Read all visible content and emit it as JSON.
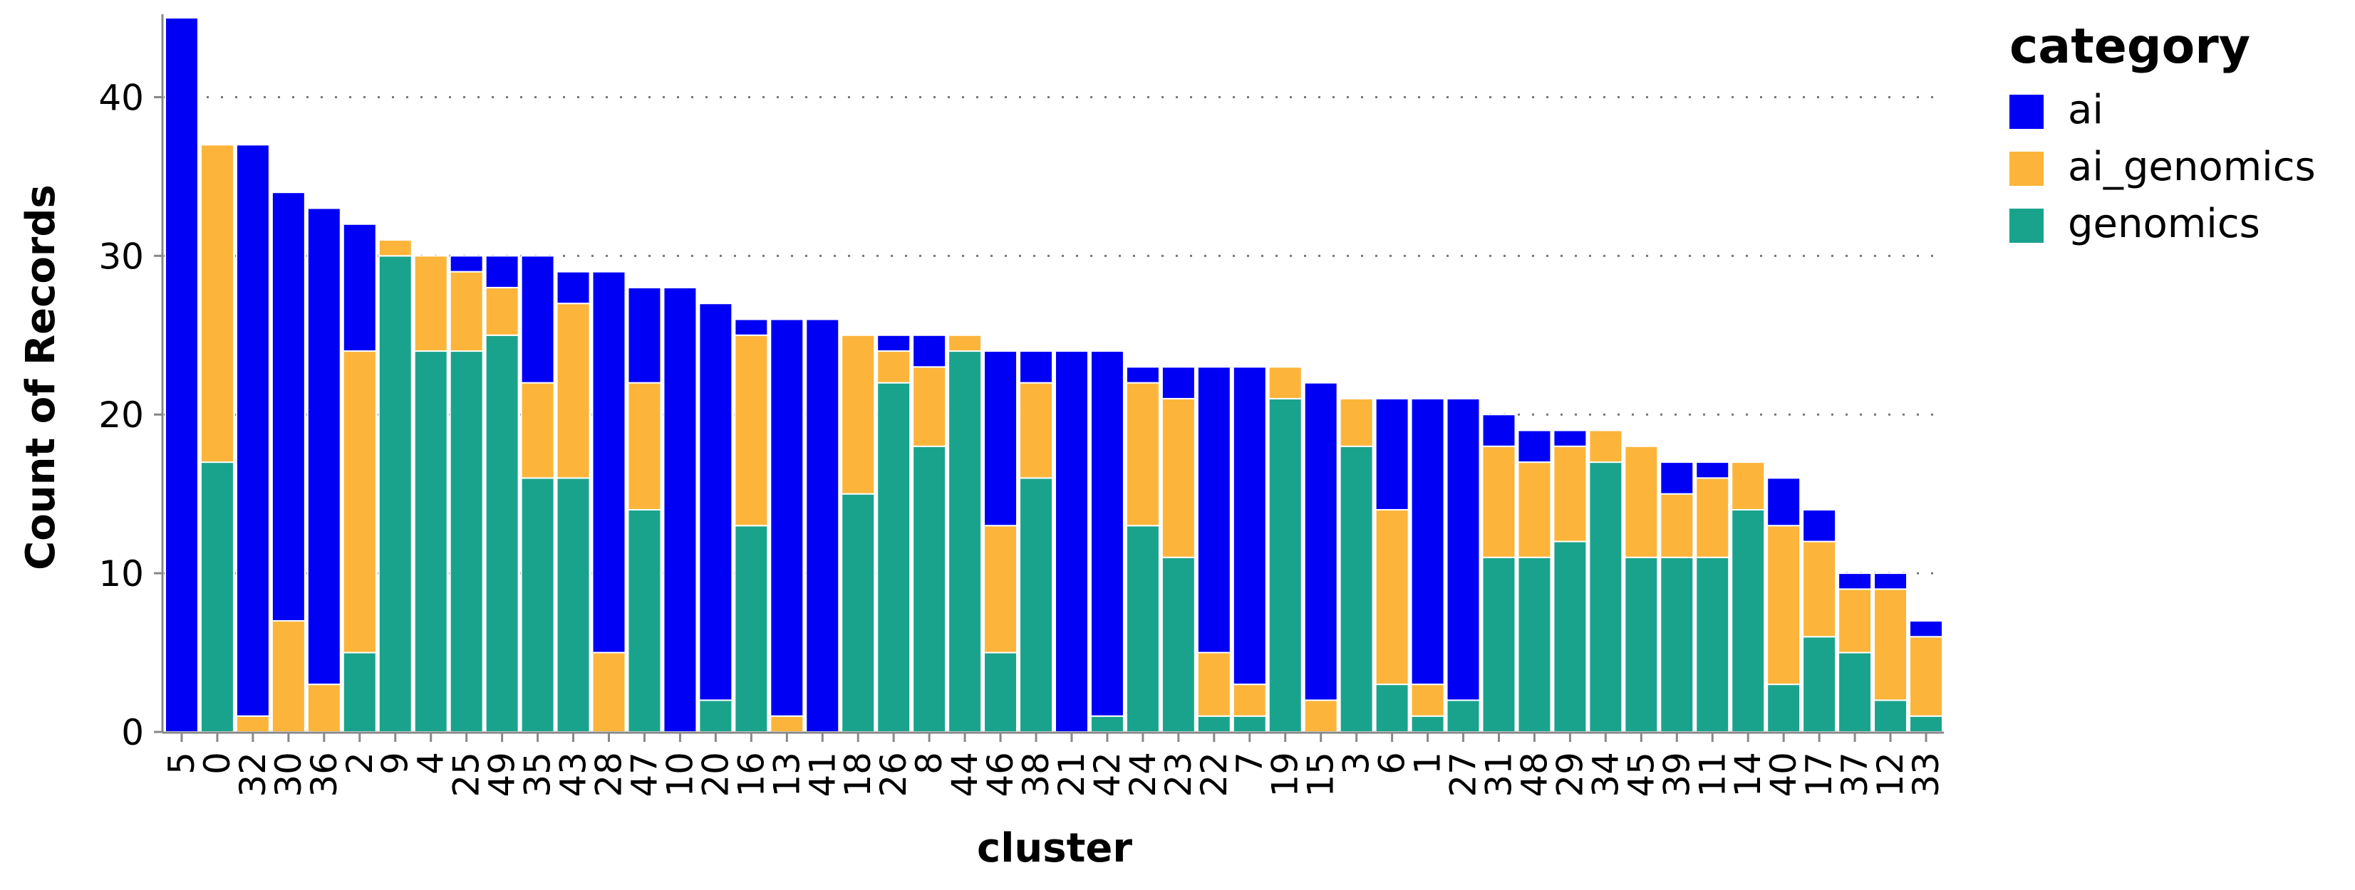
{
  "chart_data": {
    "type": "bar",
    "stacked": true,
    "title": "",
    "xlabel": "cluster",
    "ylabel": "Count of Records",
    "ylim": [
      0,
      45
    ],
    "yticks": [
      0,
      10,
      20,
      30,
      40
    ],
    "grid": "horizontal-dotted",
    "legend": {
      "title": "category",
      "position": "top-right"
    },
    "categories": [
      "5",
      "0",
      "32",
      "30",
      "36",
      "2",
      "9",
      "4",
      "25",
      "49",
      "35",
      "43",
      "28",
      "47",
      "10",
      "20",
      "16",
      "13",
      "41",
      "18",
      "26",
      "8",
      "44",
      "46",
      "38",
      "21",
      "42",
      "24",
      "23",
      "22",
      "7",
      "19",
      "15",
      "3",
      "6",
      "1",
      "27",
      "31",
      "48",
      "29",
      "34",
      "45",
      "39",
      "11",
      "14",
      "40",
      "17",
      "37",
      "12",
      "33"
    ],
    "series": [
      {
        "name": "genomics",
        "color": "#1aa38c",
        "values": [
          0,
          17,
          0,
          0,
          0,
          5,
          30,
          24,
          24,
          25,
          16,
          16,
          0,
          14,
          0,
          2,
          13,
          0,
          0,
          15,
          22,
          18,
          24,
          5,
          16,
          0,
          1,
          13,
          11,
          1,
          1,
          21,
          0,
          18,
          3,
          1,
          2,
          11,
          11,
          12,
          17,
          11,
          11,
          11,
          14,
          3,
          6,
          5,
          2,
          1
        ]
      },
      {
        "name": "ai_genomics",
        "color": "#fcb53a",
        "values": [
          0,
          20,
          1,
          7,
          3,
          19,
          1,
          6,
          5,
          3,
          6,
          11,
          5,
          8,
          0,
          0,
          12,
          1,
          0,
          10,
          2,
          5,
          1,
          8,
          6,
          0,
          0,
          9,
          10,
          4,
          2,
          2,
          2,
          3,
          11,
          2,
          0,
          7,
          6,
          6,
          2,
          7,
          4,
          5,
          3,
          10,
          6,
          4,
          7,
          5
        ]
      },
      {
        "name": "ai",
        "color": "#0000f5",
        "values": [
          45,
          0,
          36,
          27,
          30,
          8,
          0,
          0,
          1,
          2,
          8,
          2,
          24,
          6,
          28,
          25,
          1,
          25,
          26,
          0,
          1,
          2,
          0,
          11,
          2,
          24,
          23,
          1,
          2,
          18,
          20,
          0,
          20,
          0,
          7,
          18,
          19,
          2,
          2,
          1,
          0,
          0,
          2,
          1,
          0,
          3,
          2,
          1,
          1,
          1
        ]
      }
    ]
  },
  "legend_order": [
    "ai",
    "ai_genomics",
    "genomics"
  ]
}
